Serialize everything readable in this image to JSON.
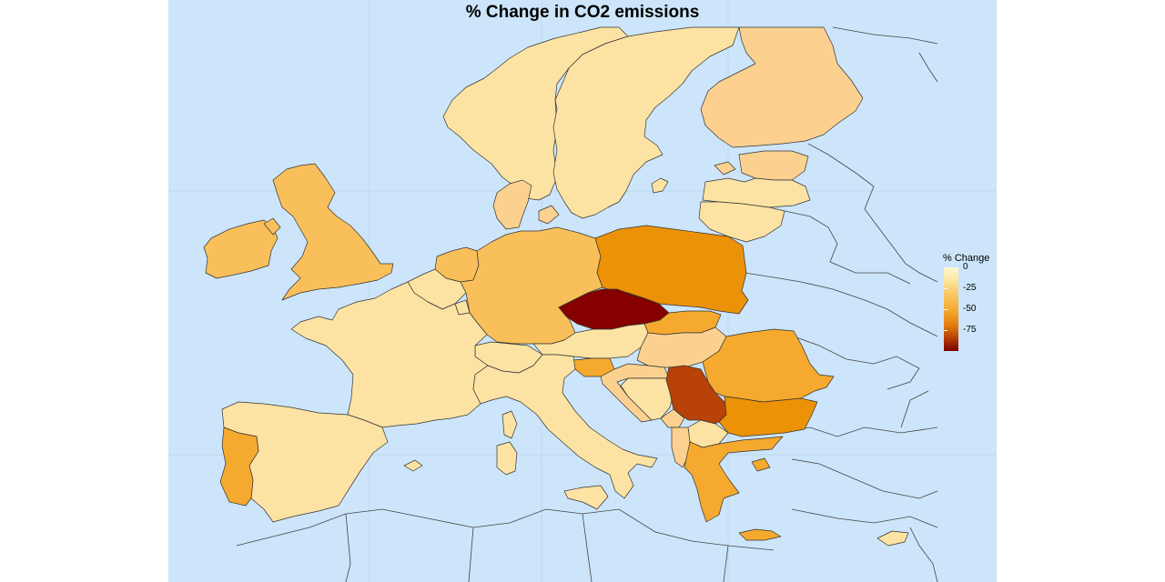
{
  "title": "% Change in CO2 emissions",
  "legend": {
    "title": "% Change",
    "ticks": [
      "0",
      "-25",
      "-50",
      "-75"
    ],
    "scale": "sequential",
    "colors": [
      "#fff7d1",
      "#f9c35c",
      "#e07b0c",
      "#7a0000"
    ]
  },
  "colors": {
    "water": "#cce5fa",
    "nodata_border": "#444444",
    "very_light": "#fde3a3",
    "light": "#fcd190",
    "medium_light": "#f9bf5a",
    "medium": "#f5a92e",
    "strong": "#ec9206",
    "dark": "#b84207",
    "darkest": "#860000"
  },
  "regions": [
    {
      "name": "norway",
      "shade": "very_light"
    },
    {
      "name": "sweden",
      "shade": "very_light"
    },
    {
      "name": "finland",
      "shade": "light"
    },
    {
      "name": "estonia",
      "shade": "light"
    },
    {
      "name": "latvia",
      "shade": "very_light"
    },
    {
      "name": "lithuania",
      "shade": "very_light"
    },
    {
      "name": "denmark",
      "shade": "light"
    },
    {
      "name": "ireland",
      "shade": "medium_light"
    },
    {
      "name": "united-kingdom",
      "shade": "medium_light"
    },
    {
      "name": "netherlands",
      "shade": "medium_light"
    },
    {
      "name": "belgium",
      "shade": "very_light"
    },
    {
      "name": "luxembourg",
      "shade": "very_light"
    },
    {
      "name": "germany",
      "shade": "medium_light"
    },
    {
      "name": "poland",
      "shade": "strong"
    },
    {
      "name": "czechia",
      "shade": "darkest"
    },
    {
      "name": "slovakia",
      "shade": "medium"
    },
    {
      "name": "austria",
      "shade": "very_light"
    },
    {
      "name": "switzerland",
      "shade": "very_light"
    },
    {
      "name": "hungary",
      "shade": "light"
    },
    {
      "name": "slovenia",
      "shade": "medium"
    },
    {
      "name": "croatia",
      "shade": "light"
    },
    {
      "name": "bosnia",
      "shade": "very_light"
    },
    {
      "name": "serbia",
      "shade": "dark"
    },
    {
      "name": "romania",
      "shade": "medium"
    },
    {
      "name": "bulgaria",
      "shade": "strong"
    },
    {
      "name": "montenegro",
      "shade": "light"
    },
    {
      "name": "albania",
      "shade": "light"
    },
    {
      "name": "macedonia",
      "shade": "very_light"
    },
    {
      "name": "greece",
      "shade": "medium"
    },
    {
      "name": "france",
      "shade": "very_light"
    },
    {
      "name": "italy",
      "shade": "very_light"
    },
    {
      "name": "sardinia",
      "shade": "very_light"
    },
    {
      "name": "corsica",
      "shade": "very_light"
    },
    {
      "name": "sicily",
      "shade": "very_light"
    },
    {
      "name": "spain",
      "shade": "very_light"
    },
    {
      "name": "portugal",
      "shade": "medium"
    },
    {
      "name": "balearics",
      "shade": "very_light"
    },
    {
      "name": "crete",
      "shade": "medium"
    },
    {
      "name": "cyprus",
      "shade": "very_light"
    },
    {
      "name": "gotland",
      "shade": "very_light"
    },
    {
      "name": "saaremaa",
      "shade": "light"
    }
  ]
}
